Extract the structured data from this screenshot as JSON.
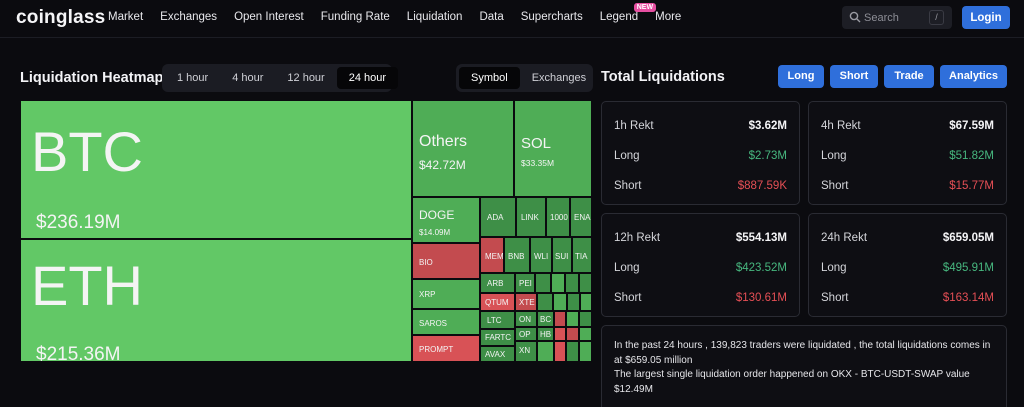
{
  "nav": {
    "logo": "coinglass",
    "items": [
      "Market",
      "Exchanges",
      "Open Interest",
      "Funding Rate",
      "Liquidation",
      "Data",
      "Supercharts",
      "Legend",
      "More"
    ],
    "new_badge": "NEW",
    "search_placeholder": "Search",
    "search_shortcut": "/",
    "login_label": "Login"
  },
  "heatmap": {
    "title": "Liquidation Heatmap",
    "time_options": [
      "1 hour",
      "4 hour",
      "12 hour",
      "24 hour"
    ],
    "time_selected": "24 hour",
    "view_options": [
      "Symbol",
      "Exchanges"
    ],
    "view_selected": "Symbol",
    "tiles": {
      "btc": {
        "symbol": "BTC",
        "amount": "$236.19M"
      },
      "eth": {
        "symbol": "ETH",
        "amount": "$215.36M"
      },
      "others": {
        "symbol": "Others",
        "amount": "$42.72M"
      },
      "sol": {
        "symbol": "SOL",
        "amount": "$33.35M"
      },
      "doge": {
        "symbol": "DOGE",
        "amount": "$14.09M"
      },
      "ada": {
        "symbol": "ADA"
      },
      "link": {
        "symbol": "LINK"
      },
      "k1000": {
        "symbol": "1000"
      },
      "ena": {
        "symbol": "ENA"
      },
      "bio": {
        "symbol": "BIO"
      },
      "meme": {
        "symbol": "MEM"
      },
      "bnb": {
        "symbol": "BNB"
      },
      "wld": {
        "symbol": "WLI"
      },
      "sui": {
        "symbol": "SUI"
      },
      "tia": {
        "symbol": "TIA"
      },
      "xrp": {
        "symbol": "XRP"
      },
      "arb": {
        "symbol": "ARB"
      },
      "pep": {
        "symbol": "PEI"
      },
      "qtum": {
        "symbol": "QTUM"
      },
      "saros": {
        "symbol": "SAROS"
      },
      "ltc": {
        "symbol": "LTC"
      },
      "xtz": {
        "symbol": "XTE"
      },
      "on": {
        "symbol": "ON"
      },
      "bc": {
        "symbol": "BC"
      },
      "prompt": {
        "symbol": "PROMPT"
      },
      "fartco": {
        "symbol": "FARTC"
      },
      "avax": {
        "symbol": "AVAX"
      },
      "op": {
        "symbol": "OP"
      },
      "hb": {
        "symbol": "HB"
      },
      "xn": {
        "symbol": "XN"
      }
    }
  },
  "totals": {
    "title": "Total Liquidations",
    "buttons": [
      "Long",
      "Short",
      "Trade",
      "Analytics"
    ],
    "cards": [
      {
        "label": "1h Rekt",
        "total": "$3.62M",
        "long_label": "Long",
        "long": "$2.73M",
        "short_label": "Short",
        "short": "$887.59K"
      },
      {
        "label": "4h Rekt",
        "total": "$67.59M",
        "long_label": "Long",
        "long": "$51.82M",
        "short_label": "Short",
        "short": "$15.77M"
      },
      {
        "label": "12h Rekt",
        "total": "$554.13M",
        "long_label": "Long",
        "long": "$423.52M",
        "short_label": "Short",
        "short": "$130.61M"
      },
      {
        "label": "24h Rekt",
        "total": "$659.05M",
        "long_label": "Long",
        "long": "$495.91M",
        "short_label": "Short",
        "short": "$163.14M"
      }
    ],
    "summary_line1": "In the past 24 hours , 139,823 traders were liquidated , the total liquidations comes in at $659.05 million",
    "summary_line2": "The largest single liquidation order happened on OKX - BTC-USDT-SWAP value $12.49M"
  }
}
